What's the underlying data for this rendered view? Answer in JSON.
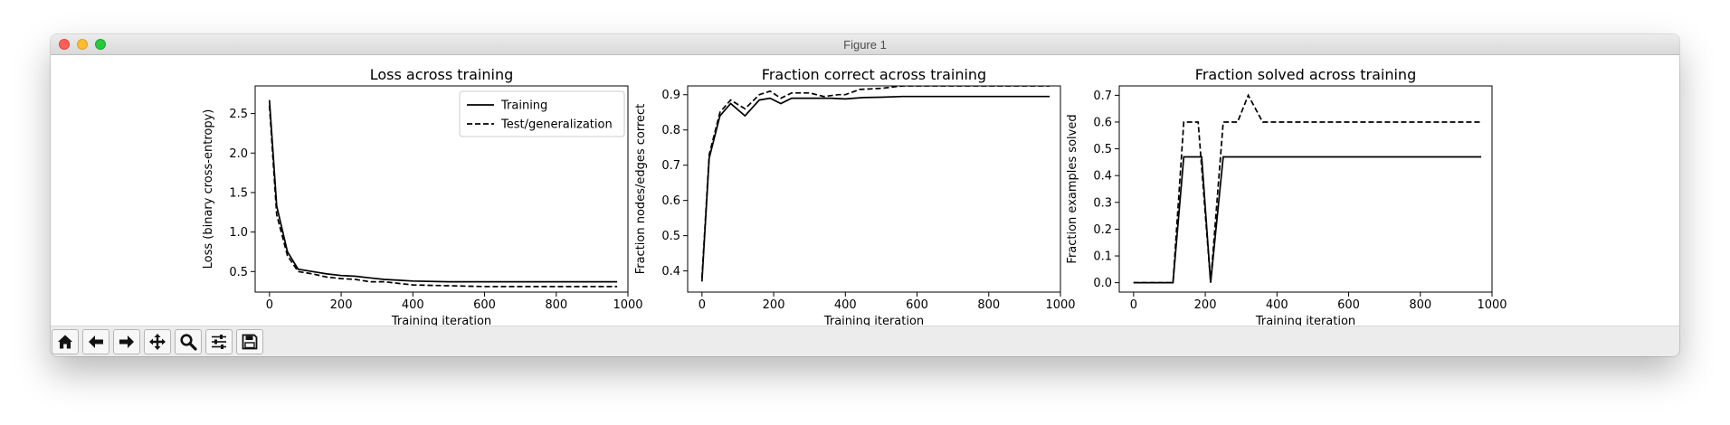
{
  "window": {
    "title": "Figure 1"
  },
  "toolbar": {
    "buttons": [
      {
        "name": "home",
        "icon": "home-icon"
      },
      {
        "name": "back",
        "icon": "arrow-left-icon"
      },
      {
        "name": "forward",
        "icon": "arrow-right-icon"
      },
      {
        "name": "pan",
        "icon": "move-icon"
      },
      {
        "name": "zoom",
        "icon": "magnifier-icon"
      },
      {
        "name": "configure-subplots",
        "icon": "sliders-icon"
      },
      {
        "name": "save",
        "icon": "save-icon"
      }
    ]
  },
  "chart_data": [
    {
      "type": "line",
      "title": "Loss across training",
      "xlabel": "Training iteration",
      "ylabel": "Loss (binary cross-entropy)",
      "xlim": [
        -40,
        1000
      ],
      "ylim": [
        0.24,
        2.85
      ],
      "xticks": [
        0,
        200,
        400,
        600,
        800,
        1000
      ],
      "yticks": [
        0.5,
        1.0,
        1.5,
        2.0,
        2.5
      ],
      "ytick_labels": [
        "0.5",
        "1.0",
        "1.5",
        "2.0",
        "2.5"
      ],
      "legend": "top-right",
      "series": [
        {
          "name": "Training",
          "style": "solid",
          "x": [
            0,
            20,
            50,
            80,
            120,
            160,
            200,
            240,
            280,
            320,
            360,
            400,
            500,
            600,
            700,
            800,
            900,
            970
          ],
          "y": [
            2.67,
            1.33,
            0.75,
            0.53,
            0.5,
            0.47,
            0.45,
            0.44,
            0.42,
            0.4,
            0.39,
            0.38,
            0.37,
            0.37,
            0.37,
            0.37,
            0.37,
            0.37
          ]
        },
        {
          "name": "Test/generalization",
          "style": "dashed",
          "x": [
            0,
            20,
            50,
            80,
            120,
            160,
            200,
            240,
            280,
            320,
            360,
            400,
            500,
            600,
            700,
            800,
            900,
            970
          ],
          "y": [
            2.6,
            1.22,
            0.7,
            0.5,
            0.47,
            0.43,
            0.41,
            0.4,
            0.37,
            0.37,
            0.35,
            0.33,
            0.32,
            0.31,
            0.31,
            0.31,
            0.31,
            0.31
          ]
        }
      ]
    },
    {
      "type": "line",
      "title": "Fraction correct across training",
      "xlabel": "Training iteration",
      "ylabel": "Fraction nodes/edges correct",
      "xlim": [
        -40,
        1000
      ],
      "ylim": [
        0.34,
        0.925
      ],
      "xticks": [
        0,
        200,
        400,
        600,
        800,
        1000
      ],
      "yticks": [
        0.4,
        0.5,
        0.6,
        0.7,
        0.8,
        0.9
      ],
      "ytick_labels": [
        "0.4",
        "0.5",
        "0.6",
        "0.7",
        "0.8",
        "0.9"
      ],
      "series": [
        {
          "name": "Training",
          "style": "solid",
          "x": [
            0,
            20,
            50,
            80,
            120,
            160,
            190,
            220,
            250,
            300,
            360,
            400,
            450,
            500,
            560,
            970
          ],
          "y": [
            0.37,
            0.72,
            0.84,
            0.875,
            0.84,
            0.885,
            0.89,
            0.875,
            0.89,
            0.89,
            0.89,
            0.888,
            0.892,
            0.893,
            0.895,
            0.895
          ]
        },
        {
          "name": "Test/generalization",
          "style": "dashed",
          "x": [
            0,
            20,
            50,
            80,
            120,
            160,
            190,
            220,
            250,
            300,
            340,
            380,
            400,
            440,
            500,
            560,
            970
          ],
          "y": [
            0.38,
            0.73,
            0.85,
            0.885,
            0.86,
            0.9,
            0.91,
            0.89,
            0.905,
            0.905,
            0.895,
            0.9,
            0.9,
            0.915,
            0.918,
            0.925,
            0.925
          ]
        }
      ]
    },
    {
      "type": "line",
      "title": "Fraction solved across training",
      "xlabel": "Training iteration",
      "ylabel": "Fraction examples solved",
      "xlim": [
        -40,
        1000
      ],
      "ylim": [
        -0.035,
        0.735
      ],
      "xticks": [
        0,
        200,
        400,
        600,
        800,
        1000
      ],
      "yticks": [
        0.0,
        0.1,
        0.2,
        0.3,
        0.4,
        0.5,
        0.6,
        0.7
      ],
      "ytick_labels": [
        "0.0",
        "0.1",
        "0.2",
        "0.3",
        "0.4",
        "0.5",
        "0.6",
        "0.7"
      ],
      "series": [
        {
          "name": "Training",
          "style": "solid",
          "x": [
            0,
            110,
            140,
            190,
            215,
            250,
            970
          ],
          "y": [
            0.0,
            0.0,
            0.47,
            0.47,
            0.0,
            0.47,
            0.47
          ]
        },
        {
          "name": "Test/generalization",
          "style": "dashed",
          "x": [
            0,
            110,
            140,
            180,
            215,
            250,
            290,
            320,
            360,
            970
          ],
          "y": [
            0.0,
            0.0,
            0.6,
            0.6,
            0.0,
            0.6,
            0.6,
            0.7,
            0.6,
            0.6
          ]
        }
      ]
    }
  ]
}
